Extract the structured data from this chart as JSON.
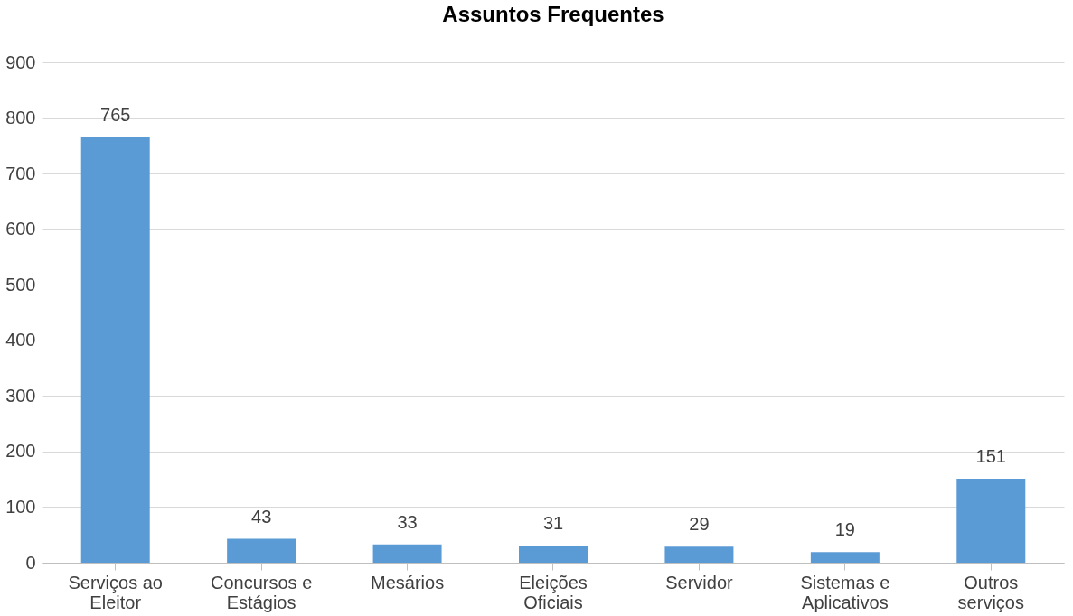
{
  "chart_data": {
    "type": "bar",
    "title": "Assuntos Frequentes",
    "categories": [
      "Serviços ao\nEleitor",
      "Concursos e\nEstágios",
      "Mesários",
      "Eleições\nOficiais",
      "Servidor",
      "Sistemas e\nAplicativos",
      "Outros\nserviços"
    ],
    "values": [
      765,
      43,
      33,
      31,
      29,
      19,
      151
    ],
    "color": "#5b9bd5",
    "ylim": [
      0,
      900
    ],
    "yticks": [
      0,
      100,
      200,
      300,
      400,
      500,
      600,
      700,
      800,
      900
    ],
    "grid": "y",
    "data_labels": true
  }
}
